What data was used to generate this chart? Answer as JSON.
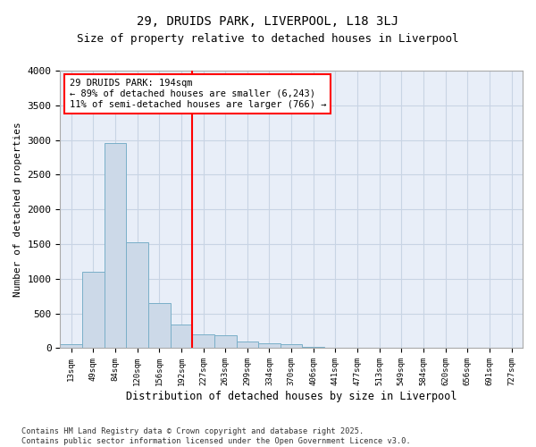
{
  "title": "29, DRUIDS PARK, LIVERPOOL, L18 3LJ",
  "subtitle": "Size of property relative to detached houses in Liverpool",
  "xlabel": "Distribution of detached houses by size in Liverpool",
  "ylabel": "Number of detached properties",
  "bar_labels": [
    "13sqm",
    "49sqm",
    "84sqm",
    "120sqm",
    "156sqm",
    "192sqm",
    "227sqm",
    "263sqm",
    "299sqm",
    "334sqm",
    "370sqm",
    "406sqm",
    "441sqm",
    "477sqm",
    "513sqm",
    "549sqm",
    "584sqm",
    "620sqm",
    "656sqm",
    "691sqm",
    "727sqm"
  ],
  "bar_values": [
    60,
    1100,
    2960,
    1530,
    650,
    340,
    200,
    190,
    90,
    75,
    60,
    15,
    10,
    10,
    5,
    5,
    5,
    5,
    5,
    5,
    5
  ],
  "bar_color": "#ccd9e8",
  "bar_edgecolor": "#7aafc8",
  "vline_x": 5.5,
  "vline_color": "red",
  "annotation_text": "29 DRUIDS PARK: 194sqm\n← 89% of detached houses are smaller (6,243)\n11% of semi-detached houses are larger (766) →",
  "annotation_box_edgecolor": "red",
  "annotation_fontsize": 7.5,
  "ylim": [
    0,
    4000
  ],
  "yticks": [
    0,
    500,
    1000,
    1500,
    2000,
    2500,
    3000,
    3500,
    4000
  ],
  "grid_color": "#c8d4e4",
  "bg_color": "#e8eef8",
  "footnote": "Contains HM Land Registry data © Crown copyright and database right 2025.\nContains public sector information licensed under the Open Government Licence v3.0.",
  "title_fontsize": 10,
  "subtitle_fontsize": 9,
  "xlabel_fontsize": 8.5,
  "ylabel_fontsize": 8
}
